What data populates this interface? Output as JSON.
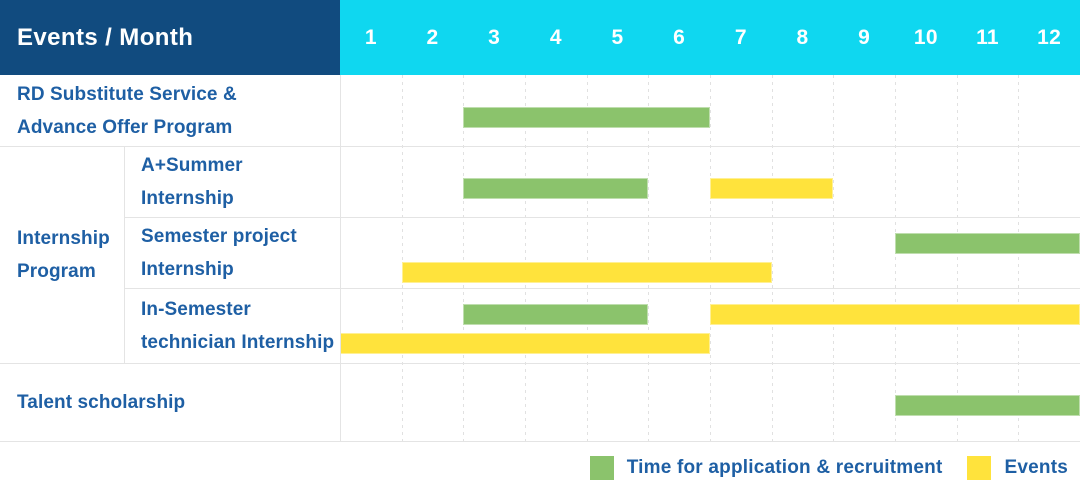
{
  "header": {
    "title": "Events / Month",
    "months": [
      "1",
      "2",
      "3",
      "4",
      "5",
      "6",
      "7",
      "8",
      "9",
      "10",
      "11",
      "12"
    ]
  },
  "chart_data": {
    "type": "bar",
    "subtype": "gantt-schedule",
    "title": "Events / Month",
    "xlabel": "Month",
    "categories": [
      1,
      2,
      3,
      4,
      5,
      6,
      7,
      8,
      9,
      10,
      11,
      12
    ],
    "x_range": [
      1,
      12
    ],
    "grid": "vertical dotted month separators",
    "legend_position": "bottom-right",
    "group_label_lines": [
      "Internship",
      "Program"
    ],
    "rows": [
      {
        "group": null,
        "label_lines": [
          "RD Substitute Service &",
          "Advance Offer Program"
        ],
        "bars": [
          {
            "series": "recruitment",
            "start_month": 3,
            "end_month": 6,
            "lane": "middle"
          }
        ]
      },
      {
        "group": "Internship Program",
        "label_lines": [
          "A+Summer",
          "Internship"
        ],
        "bars": [
          {
            "series": "recruitment",
            "start_month": 3,
            "end_month": 5,
            "lane": "middle"
          },
          {
            "series": "event",
            "start_month": 7,
            "end_month": 8,
            "lane": "middle"
          }
        ]
      },
      {
        "group": "Internship Program",
        "label_lines": [
          "Semester project",
          "Internship"
        ],
        "bars": [
          {
            "series": "recruitment",
            "start_month": 10,
            "end_month": 12,
            "lane": "upper"
          },
          {
            "series": "event",
            "start_month": 2,
            "end_month": 7,
            "lane": "lower"
          }
        ]
      },
      {
        "group": "Internship Program",
        "label_lines": [
          "In-Semester",
          "technician Internship"
        ],
        "bars": [
          {
            "series": "recruitment",
            "start_month": 3,
            "end_month": 5,
            "lane": "upper"
          },
          {
            "series": "event",
            "start_month": 7,
            "end_month": 12,
            "lane": "upper"
          },
          {
            "series": "event",
            "start_month": 1,
            "end_month": 6,
            "lane": "lower"
          }
        ]
      },
      {
        "group": null,
        "label_lines": [
          "Talent scholarship"
        ],
        "bars": [
          {
            "series": "recruitment",
            "start_month": 10,
            "end_month": 12,
            "lane": "middle"
          }
        ]
      }
    ]
  },
  "legend": {
    "items": [
      {
        "series": "recruitment",
        "label": "Time for application & recruitment",
        "color": "#8BC36C"
      },
      {
        "series": "event",
        "label": "Events",
        "color": "#FFE33C"
      }
    ]
  },
  "colors": {
    "header_bg": "#114B7F",
    "months_bg": "#0FD7F0",
    "header_text": "#FFFFFF",
    "label_text": "#1E5FA4",
    "recruitment_bar": "#8BC36C",
    "event_bar": "#FFE33C",
    "grid_line": "#E4E4E4"
  }
}
